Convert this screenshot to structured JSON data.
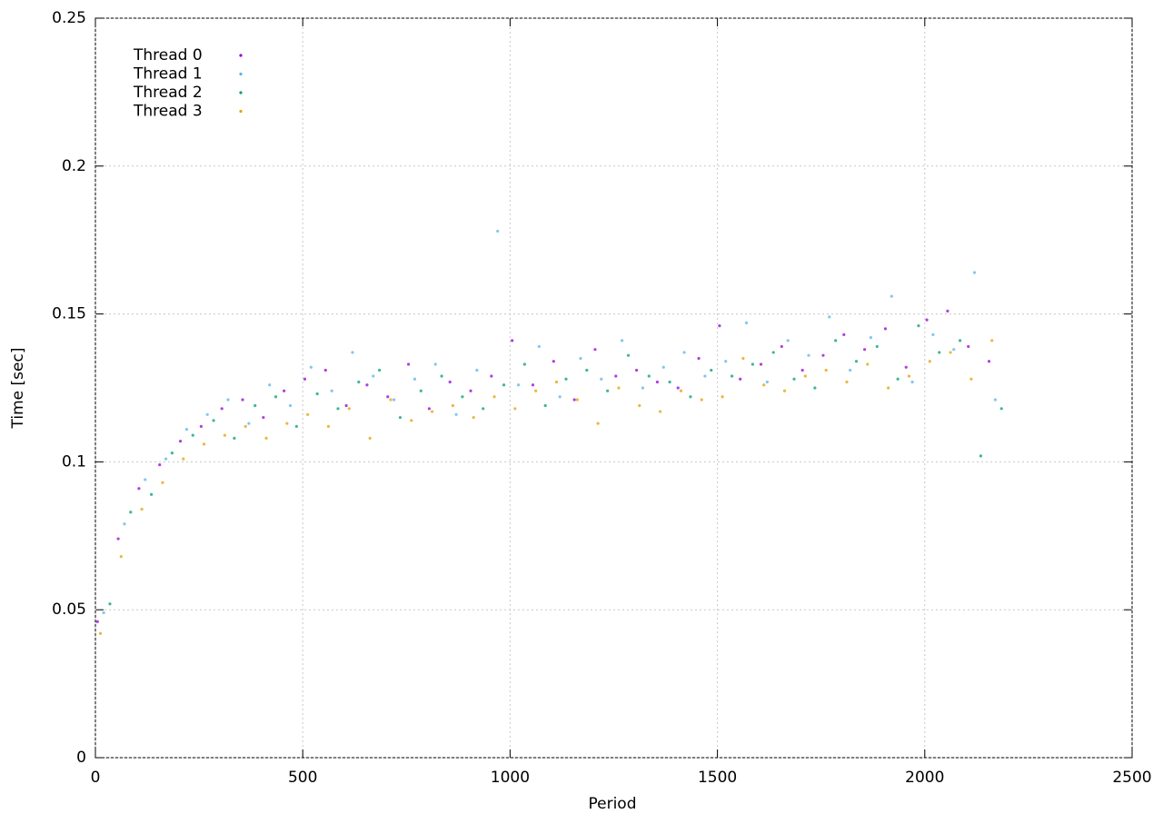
{
  "chart_data": {
    "type": "scatter",
    "x_label": "Period",
    "y_label": "Time [sec]",
    "xlim": [
      0,
      2500
    ],
    "xticks": [
      0,
      500,
      1000,
      1500,
      2000,
      2500
    ],
    "ylim": [
      0,
      0.25
    ],
    "yticks": [
      0,
      0.05,
      0.1,
      0.15,
      0.2,
      0.25
    ],
    "grid": true,
    "legend_position": "top-left",
    "series": [
      {
        "name": "Thread 0",
        "color": "#9400d3",
        "x": [
          5,
          55,
          105,
          155,
          205,
          255,
          305,
          355,
          405,
          455,
          505,
          555,
          605,
          655,
          705,
          755,
          805,
          855,
          905,
          955,
          1005,
          1055,
          1105,
          1155,
          1205,
          1255,
          1305,
          1355,
          1405,
          1455,
          1505,
          1555,
          1605,
          1655,
          1705,
          1755,
          1805,
          1855,
          1905,
          1955,
          2005,
          2055,
          2105,
          2155
        ],
        "values": [
          0.046,
          0.074,
          0.091,
          0.099,
          0.107,
          0.112,
          0.118,
          0.121,
          0.115,
          0.124,
          0.128,
          0.131,
          0.119,
          0.126,
          0.122,
          0.133,
          0.118,
          0.127,
          0.124,
          0.129,
          0.141,
          0.126,
          0.134,
          0.121,
          0.138,
          0.129,
          0.131,
          0.127,
          0.125,
          0.135,
          0.146,
          0.128,
          0.133,
          0.139,
          0.131,
          0.136,
          0.143,
          0.138,
          0.145,
          0.132,
          0.148,
          0.151,
          0.139,
          0.134
        ]
      },
      {
        "name": "Thread 1",
        "color": "#56b4e9",
        "x": [
          20,
          70,
          120,
          170,
          220,
          270,
          320,
          370,
          420,
          470,
          520,
          570,
          620,
          670,
          720,
          770,
          820,
          870,
          920,
          970,
          1020,
          1070,
          1120,
          1170,
          1220,
          1270,
          1320,
          1370,
          1420,
          1470,
          1520,
          1570,
          1620,
          1670,
          1720,
          1770,
          1820,
          1870,
          1920,
          1970,
          2020,
          2070,
          2120,
          2170
        ],
        "values": [
          0.049,
          0.079,
          0.094,
          0.101,
          0.111,
          0.116,
          0.121,
          0.113,
          0.126,
          0.119,
          0.132,
          0.124,
          0.137,
          0.129,
          0.121,
          0.128,
          0.133,
          0.116,
          0.131,
          0.178,
          0.126,
          0.139,
          0.122,
          0.135,
          0.128,
          0.141,
          0.125,
          0.132,
          0.137,
          0.129,
          0.134,
          0.147,
          0.127,
          0.141,
          0.136,
          0.149,
          0.131,
          0.142,
          0.156,
          0.127,
          0.143,
          0.138,
          0.164,
          0.121
        ]
      },
      {
        "name": "Thread 2",
        "color": "#009e73",
        "x": [
          35,
          85,
          135,
          185,
          235,
          285,
          335,
          385,
          435,
          485,
          535,
          585,
          635,
          685,
          735,
          785,
          835,
          885,
          935,
          985,
          1035,
          1085,
          1135,
          1185,
          1235,
          1285,
          1335,
          1385,
          1435,
          1485,
          1535,
          1585,
          1635,
          1685,
          1735,
          1785,
          1835,
          1885,
          1935,
          1985,
          2035,
          2085,
          2135,
          2185
        ],
        "values": [
          0.052,
          0.083,
          0.089,
          0.103,
          0.109,
          0.114,
          0.108,
          0.119,
          0.122,
          0.112,
          0.123,
          0.118,
          0.127,
          0.131,
          0.115,
          0.124,
          0.129,
          0.122,
          0.118,
          0.126,
          0.133,
          0.119,
          0.128,
          0.131,
          0.124,
          0.136,
          0.129,
          0.127,
          0.122,
          0.131,
          0.129,
          0.133,
          0.137,
          0.128,
          0.125,
          0.141,
          0.134,
          0.139,
          0.128,
          0.146,
          0.137,
          0.141,
          0.102,
          0.118
        ]
      },
      {
        "name": "Thread 3",
        "color": "#e69f00",
        "x": [
          12,
          62,
          112,
          162,
          212,
          262,
          312,
          362,
          412,
          462,
          512,
          562,
          612,
          662,
          712,
          762,
          812,
          862,
          912,
          962,
          1012,
          1062,
          1112,
          1162,
          1212,
          1262,
          1312,
          1362,
          1412,
          1462,
          1512,
          1562,
          1612,
          1662,
          1712,
          1762,
          1812,
          1862,
          1912,
          1962,
          2012,
          2062,
          2112,
          2162
        ],
        "values": [
          0.042,
          0.068,
          0.084,
          0.093,
          0.101,
          0.106,
          0.109,
          0.112,
          0.108,
          0.113,
          0.116,
          0.112,
          0.118,
          0.108,
          0.121,
          0.114,
          0.117,
          0.119,
          0.115,
          0.122,
          0.118,
          0.124,
          0.127,
          0.121,
          0.113,
          0.125,
          0.119,
          0.117,
          0.124,
          0.121,
          0.122,
          0.135,
          0.126,
          0.124,
          0.129,
          0.131,
          0.127,
          0.133,
          0.125,
          0.129,
          0.134,
          0.137,
          0.128,
          0.141
        ]
      }
    ]
  }
}
